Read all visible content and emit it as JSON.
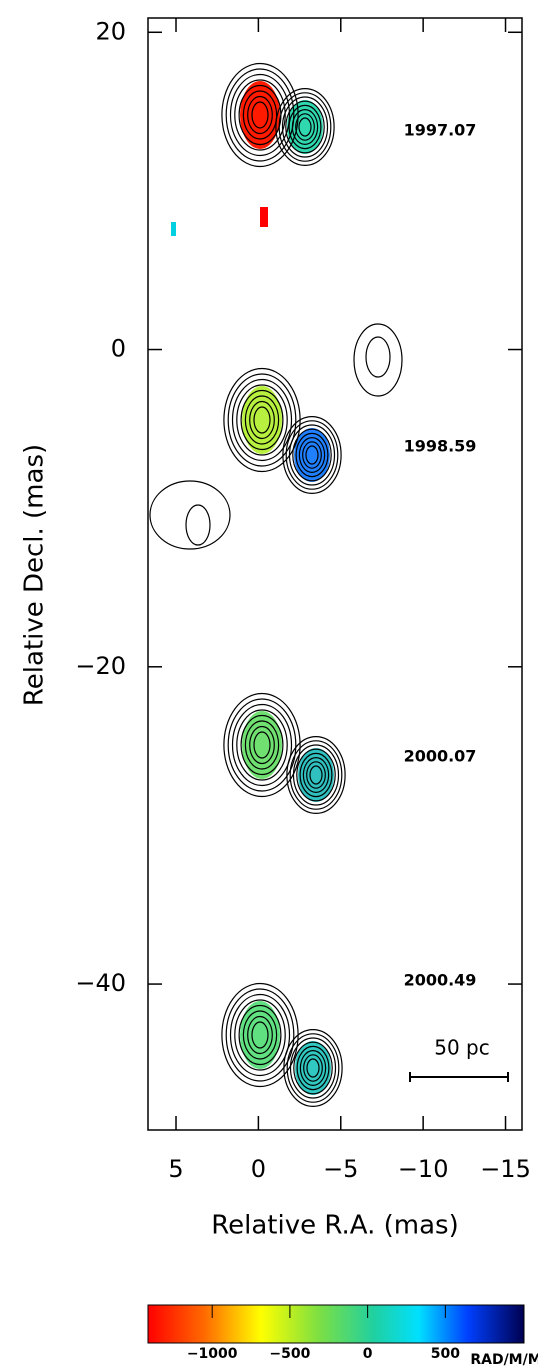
{
  "chart_data": {
    "type": "image",
    "xlabel": "Relative R.A. (mas)",
    "ylabel": "Relative Decl. (mas)",
    "xlim": [
      6.7,
      -16
    ],
    "xticks": [
      5,
      0,
      {
        "value": -5,
        "label": "−5"
      },
      {
        "value": -10,
        "label": "−10"
      },
      {
        "value": -15,
        "label": "−15"
      }
    ],
    "ylim": [
      -49.2,
      20.9
    ],
    "yticks": [
      20,
      0,
      {
        "value": -20,
        "label": "−20"
      },
      {
        "value": -40,
        "label": "−40"
      }
    ],
    "annotations": [
      "1997.07",
      "1998.59",
      "2000.07",
      "2000.49"
    ],
    "scale_bar": "50 pc",
    "colorbar": {
      "clim": [
        -1413,
        1006
      ],
      "ticks": [
        {
          "value": -1000,
          "label": "−1000"
        },
        {
          "value": -500,
          "label": "−500"
        },
        0,
        500
      ],
      "label": "RAD/M/M"
    }
  }
}
